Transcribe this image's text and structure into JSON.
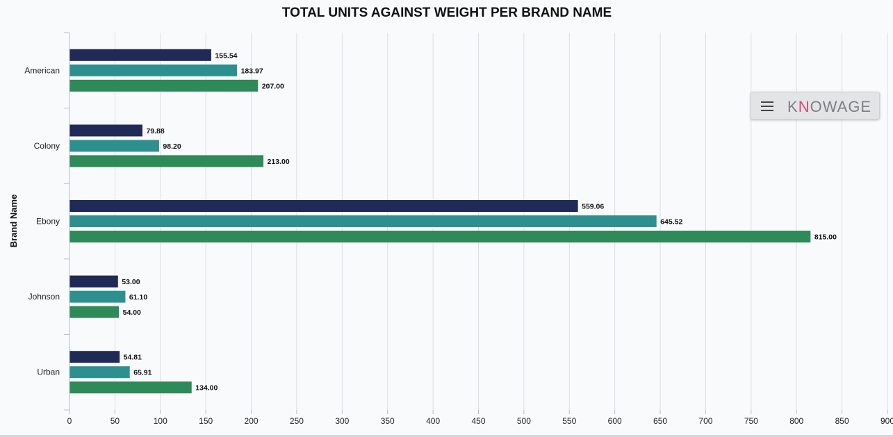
{
  "chart_data": {
    "type": "bar",
    "orientation": "horizontal",
    "title": "TOTAL UNITS AGAINST WEIGHT PER BRAND NAME",
    "ylabel": "Brand Name",
    "xlabel": "",
    "categories": [
      "American",
      "Colony",
      "Ebony",
      "Johnson",
      "Urban"
    ],
    "series": [
      {
        "color": "#1f2a56",
        "values": [
          155.54,
          79.88,
          559.06,
          53.0,
          54.81
        ],
        "labels": [
          "155.54",
          "79.88",
          "559.06",
          "53.00",
          "54.81"
        ]
      },
      {
        "color": "#2e8f8f",
        "values": [
          183.97,
          98.2,
          645.52,
          61.1,
          65.91
        ],
        "labels": [
          "183.97",
          "98.20",
          "645.52",
          "61.10",
          "65.91"
        ]
      },
      {
        "color": "#2e8a58",
        "values": [
          207.0,
          213.0,
          815.0,
          54.0,
          134.0
        ],
        "labels": [
          "207.00",
          "213.00",
          "815.00",
          "54.00",
          "134.00"
        ]
      }
    ],
    "xlim": [
      0,
      900
    ],
    "xticks": [
      "0",
      "50",
      "100",
      "150",
      "200",
      "250",
      "300",
      "350",
      "400",
      "450",
      "500",
      "550",
      "600",
      "650",
      "700",
      "750",
      "800",
      "850",
      "900"
    ],
    "grid": true,
    "data_labels": true
  },
  "toolbar": {
    "menu_icon": "hamburger-menu-icon",
    "logo_text_a": "K",
    "logo_accent": "∩",
    "logo_text_b": "OWAGE",
    "logo_full": "KNOWAGE"
  }
}
